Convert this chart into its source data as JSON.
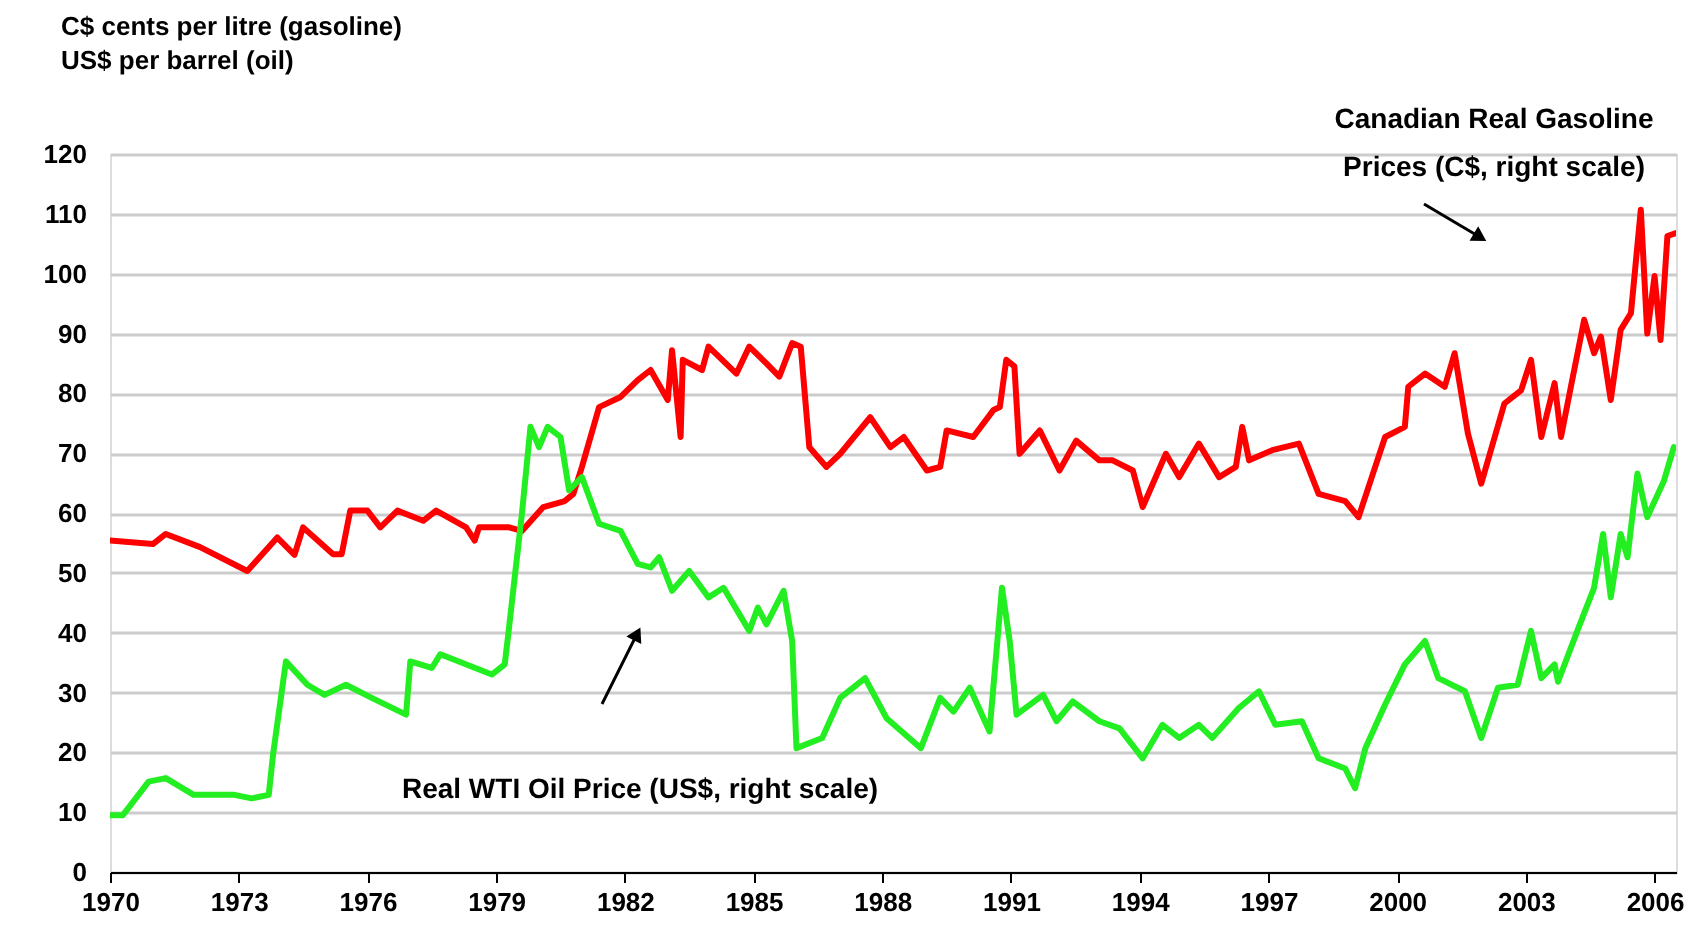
{
  "chart_data": {
    "type": "line",
    "ylabel": "C$ cents per litre (gasoline)\nUS$ per barrel (oil)",
    "xlim": [
      1970,
      2006.5
    ],
    "xticks": [
      1970,
      1973,
      1976,
      1979,
      1982,
      1985,
      1988,
      1991,
      1994,
      1997,
      2000,
      2003,
      2006
    ],
    "ylim": [
      0,
      120
    ],
    "yticks": [
      0,
      10,
      20,
      30,
      40,
      50,
      60,
      70,
      80,
      90,
      100,
      110,
      120
    ],
    "grid": "y",
    "series": [
      {
        "name": "Canadian Real Gasoline Prices (C$, right scale)",
        "color": "#ff0000",
        "x": [
          1970,
          1971.0,
          1971.3,
          1972.1,
          1973.2,
          1973.9,
          1974.3,
          1974.5,
          1975.2,
          1975.4,
          1975.6,
          1976.0,
          1976.3,
          1976.7,
          1977.3,
          1977.6,
          1978.3,
          1978.5,
          1978.6,
          1979.3,
          1979.6,
          1980.1,
          1980.6,
          1980.8,
          1981.0,
          1981.4,
          1981.9,
          1982.3,
          1982.6,
          1983.0,
          1983.1,
          1983.3,
          1983.35,
          1983.8,
          1983.95,
          1984.6,
          1984.9,
          1985.3,
          1985.6,
          1985.9,
          1986.1,
          1986.3,
          1986.7,
          1987.02,
          1987.72,
          1988.19,
          1988.5,
          1989.04,
          1989.35,
          1989.5,
          1990.12,
          1990.59,
          1990.74,
          1990.89,
          1991.08,
          1991.2,
          1991.67,
          1992.13,
          1992.52,
          1993.06,
          1993.37,
          1993.84,
          1994.07,
          1994.61,
          1994.92,
          1995.38,
          1995.85,
          1996.24,
          1996.39,
          1996.55,
          1997.09,
          1997.71,
          1998.17,
          1998.79,
          1999.1,
          1999.41,
          1999.72,
          2000.18,
          2000.26,
          2000.65,
          2001.11,
          2001.34,
          2001.65,
          2001.96,
          2002.5,
          2002.89,
          2003.12,
          2003.36,
          2003.67,
          2003.82,
          2004.05,
          2004.36,
          2004.59,
          2004.75,
          2004.98,
          2005.21,
          2005.45,
          2005.68,
          2005.83,
          2006.0,
          2006.14,
          2006.3,
          2006.5
        ],
        "values": [
          55.4,
          54.8,
          56.5,
          54.3,
          50.3,
          55.9,
          53,
          57.6,
          53.1,
          53.1,
          60.4,
          60.4,
          57.6,
          60.4,
          58.7,
          60.4,
          57.6,
          55.4,
          57.6,
          57.6,
          57,
          61,
          62,
          63.2,
          67.7,
          77.7,
          79.4,
          82.2,
          83.9,
          78.9,
          87.2,
          72.7,
          85.6,
          83.9,
          87.8,
          83.3,
          87.8,
          85,
          82.8,
          88.4,
          87.8,
          71,
          67.7,
          69.9,
          76,
          71,
          72.7,
          67.1,
          67.7,
          73.8,
          72.7,
          77.2,
          77.7,
          85.6,
          84.5,
          69.9,
          73.8,
          67.1,
          72.1,
          68.8,
          68.8,
          67.1,
          61,
          69.9,
          66,
          71.6,
          66,
          67.7,
          74.4,
          68.8,
          70.5,
          71.6,
          63.2,
          62,
          59.3,
          66,
          72.7,
          74.4,
          81.1,
          83.3,
          81.1,
          86.7,
          73.3,
          64.9,
          78.3,
          80.5,
          85.6,
          72.7,
          81.7,
          72.7,
          81.1,
          92.3,
          86.7,
          89.5,
          78.9,
          90.6,
          93.4,
          110.7,
          90,
          99.6,
          88.9,
          106.3,
          106.8
        ]
      },
      {
        "name": "Real WTI Oil Price (US$, right scale)",
        "color": "#22ee22",
        "x": [
          1970,
          1970.3,
          1970.9,
          1971.3,
          1971.95,
          1972.9,
          1973.3,
          1973.7,
          1973.8,
          1974.1,
          1974.6,
          1975.0,
          1975.5,
          1976.1,
          1976.9,
          1977.0,
          1977.5,
          1977.7,
          1978.9,
          1979.2,
          1979.3,
          1979.6,
          1979.8,
          1980.0,
          1980.2,
          1980.5,
          1980.7,
          1981.0,
          1981.4,
          1981.9,
          1982.3,
          1982.6,
          1982.8,
          1983.1,
          1983.5,
          1983.95,
          1984.3,
          1984.9,
          1985.1,
          1985.3,
          1985.7,
          1985.9,
          1986.0,
          1986.6,
          1987.02,
          1987.6,
          1988.1,
          1988.9,
          1989.35,
          1989.66,
          1990.04,
          1990.5,
          1990.79,
          1990.97,
          1991.13,
          1991.75,
          1992.06,
          1992.44,
          1993.06,
          1993.53,
          1994.07,
          1994.53,
          1994.92,
          1995.38,
          1995.69,
          1996.31,
          1996.78,
          1997.16,
          1997.78,
          1998.17,
          1998.79,
          1999.02,
          1999.26,
          1999.72,
          2000.18,
          2000.65,
          2000.96,
          2001.58,
          2001.96,
          2002.35,
          2002.81,
          2003.12,
          2003.36,
          2003.67,
          2003.75,
          2004.2,
          2004.59,
          2004.8,
          2004.98,
          2005.21,
          2005.37,
          2005.6,
          2005.83,
          2006.22,
          2006.45
        ],
        "values": [
          9.5,
          9.5,
          15.1,
          15.7,
          12.9,
          12.9,
          12.3,
          12.9,
          19.6,
          35.2,
          31.3,
          29.6,
          31.3,
          29.1,
          26.3,
          35.2,
          34.1,
          36.4,
          33,
          34.7,
          40.8,
          59.8,
          74.4,
          71,
          74.4,
          72.7,
          63.8,
          66,
          58.2,
          57,
          51.5,
          50.9,
          52.6,
          47,
          50.3,
          45.9,
          47.5,
          40.3,
          44.2,
          41.4,
          47,
          38.6,
          20.7,
          22.4,
          29.1,
          32.4,
          25.7,
          20.7,
          29.1,
          26.8,
          30.8,
          23.5,
          47.5,
          38.6,
          26.3,
          29.6,
          25.2,
          28.5,
          25.2,
          24,
          19,
          24.6,
          22.4,
          24.6,
          22.4,
          27.4,
          30.2,
          24.6,
          25.2,
          19,
          17.3,
          14,
          20.7,
          28,
          34.7,
          38.6,
          32.4,
          30.2,
          22.4,
          30.8,
          31.3,
          40.3,
          32.4,
          34.7,
          31.8,
          40.3,
          47.5,
          56.5,
          45.9,
          56.5,
          52.6,
          66.6,
          59.3,
          65.4,
          71
        ]
      }
    ]
  }
}
